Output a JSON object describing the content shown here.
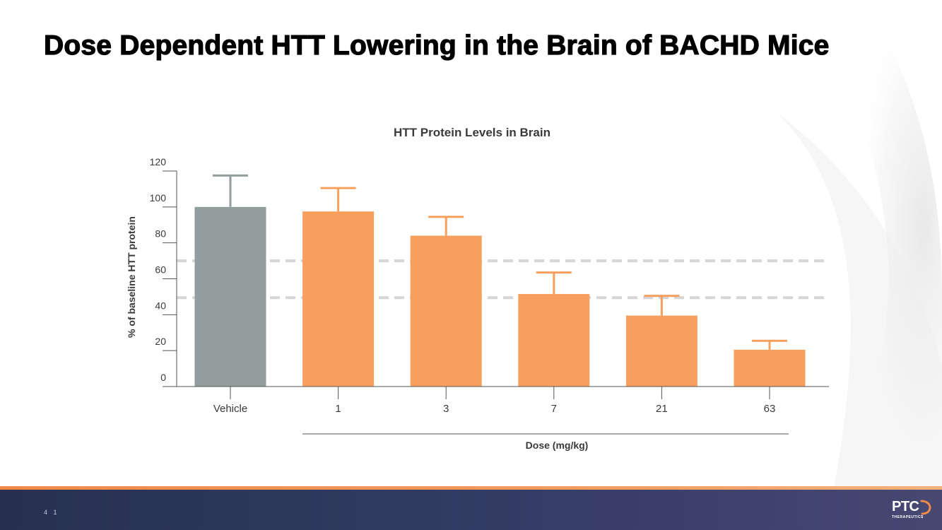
{
  "slide": {
    "title": "Dose Dependent HTT Lowering in the Brain of BACHD Mice",
    "page_number": "4 1"
  },
  "logo": {
    "name": "PTC",
    "sub": "THERAPEUTICS"
  },
  "colors": {
    "vehicle_bar": "#929e9d",
    "dose_bar": "#f7a05e",
    "reference_line": "#d6d6d6",
    "footer": "#2f3a60",
    "footer_accent": "#f0894a"
  },
  "chart_data": {
    "type": "bar",
    "title": "HTT Protein Levels in Brain",
    "xlabel": "Dose (mg/kg)",
    "ylabel": "% of baseline HTT protein",
    "ylim": [
      0,
      120
    ],
    "yticks": [
      0,
      20,
      40,
      60,
      80,
      100,
      120
    ],
    "categories": [
      "Vehicle",
      "1",
      "3",
      "7",
      "21",
      "63"
    ],
    "values": [
      100,
      97.5,
      84,
      51.5,
      39.5,
      20.5
    ],
    "error_upper": [
      117.5,
      110.5,
      94.5,
      63.5,
      50.5,
      25.5
    ],
    "reference_lines": [
      70,
      49.5
    ],
    "grid": false,
    "legend": "none"
  }
}
